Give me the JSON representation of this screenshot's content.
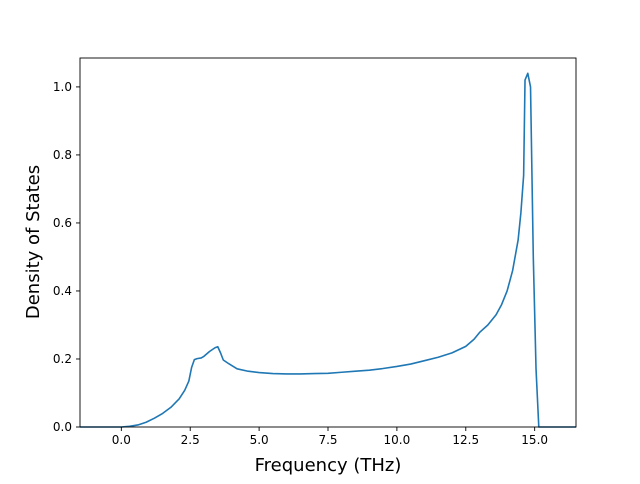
{
  "chart_data": {
    "type": "line",
    "title": "",
    "xlabel": "Frequency (THz)",
    "ylabel": "Density of States",
    "xlim": [
      -1.5,
      16.5
    ],
    "ylim": [
      0.0,
      1.085
    ],
    "xticks": [
      0.0,
      2.5,
      5.0,
      7.5,
      10.0,
      12.5,
      15.0
    ],
    "xtick_labels": [
      "0.0",
      "2.5",
      "5.0",
      "7.5",
      "10.0",
      "12.5",
      "15.0"
    ],
    "yticks": [
      0.0,
      0.2,
      0.4,
      0.6,
      0.8,
      1.0
    ],
    "ytick_labels": [
      "0.0",
      "0.2",
      "0.4",
      "0.6",
      "0.8",
      "1.0"
    ],
    "grid": false,
    "legend": "none",
    "line_color": "#1f77b4",
    "series": [
      {
        "x": [
          -1.5,
          -1.0,
          -0.5,
          0.0,
          0.3,
          0.6,
          0.9,
          1.2,
          1.5,
          1.8,
          2.1,
          2.3,
          2.45,
          2.55,
          2.65,
          2.75,
          2.9,
          3.0,
          3.2,
          3.4,
          3.5,
          3.6,
          3.7,
          3.9,
          4.2,
          4.6,
          5.0,
          5.5,
          6.0,
          6.5,
          7.0,
          7.5,
          8.0,
          8.5,
          9.0,
          9.5,
          10.0,
          10.5,
          11.0,
          11.5,
          12.0,
          12.5,
          12.8,
          13.0,
          13.3,
          13.6,
          13.8,
          14.0,
          14.2,
          14.4,
          14.5,
          14.6,
          14.65,
          14.75,
          14.85,
          14.95,
          15.05,
          15.15,
          15.5,
          16.0,
          16.5
        ],
        "y": [
          0.0,
          0.0,
          0.0,
          0.0,
          0.002,
          0.006,
          0.014,
          0.026,
          0.04,
          0.058,
          0.083,
          0.108,
          0.135,
          0.175,
          0.198,
          0.201,
          0.203,
          0.208,
          0.222,
          0.233,
          0.236,
          0.218,
          0.197,
          0.186,
          0.171,
          0.164,
          0.16,
          0.157,
          0.156,
          0.156,
          0.157,
          0.158,
          0.161,
          0.164,
          0.167,
          0.172,
          0.178,
          0.185,
          0.195,
          0.205,
          0.218,
          0.237,
          0.258,
          0.278,
          0.3,
          0.33,
          0.36,
          0.4,
          0.46,
          0.55,
          0.63,
          0.74,
          1.02,
          1.04,
          1.0,
          0.5,
          0.17,
          0.0,
          0.0,
          0.0,
          0.0
        ]
      }
    ]
  }
}
